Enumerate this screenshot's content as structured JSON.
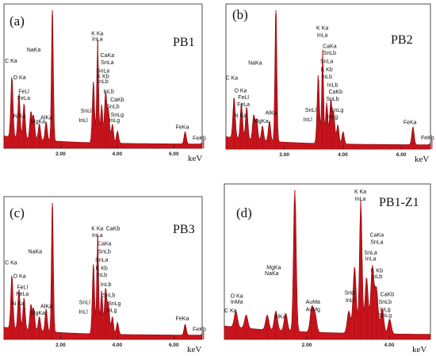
{
  "chart_data": [
    {
      "type": "area",
      "label": "(a)",
      "title": "PB1",
      "xunit": "keV",
      "xlim": [
        0,
        7.0
      ],
      "ylim": [
        0,
        100
      ],
      "xticks": [
        "2.00",
        "4.00",
        "6.00"
      ],
      "peaks": [
        {
          "x": 0.28,
          "h": 45
        },
        {
          "x": 0.53,
          "h": 33
        },
        {
          "x": 0.71,
          "h": 26
        },
        {
          "x": 0.95,
          "h": 20
        },
        {
          "x": 1.05,
          "h": 17
        },
        {
          "x": 1.25,
          "h": 12
        },
        {
          "x": 1.49,
          "h": 14
        },
        {
          "x": 1.71,
          "h": 100
        },
        {
          "x": 3.16,
          "h": 45
        },
        {
          "x": 3.31,
          "h": 75
        },
        {
          "x": 3.45,
          "h": 28
        },
        {
          "x": 3.59,
          "h": 38
        },
        {
          "x": 3.69,
          "h": 24
        },
        {
          "x": 3.83,
          "h": 14
        },
        {
          "x": 4.01,
          "h": 9
        },
        {
          "x": 6.4,
          "h": 9
        },
        {
          "x": 7.05,
          "h": 3
        }
      ],
      "labels": [
        {
          "text": "C Ka",
          "x": 0.25,
          "y": 62
        },
        {
          "text": "O Ka",
          "x": 0.55,
          "y": 50
        },
        {
          "text": "FeLl",
          "x": 0.7,
          "y": 40
        },
        {
          "text": "FeLa",
          "x": 0.7,
          "y": 35
        },
        {
          "text": "NaKa",
          "x": 1.05,
          "y": 70
        },
        {
          "text": "MgKa",
          "x": 1.2,
          "y": 18
        },
        {
          "text": "AlKa",
          "x": 1.5,
          "y": 21
        },
        {
          "text": "N Ka",
          "x": 0.55,
          "y": 22
        },
        {
          "text": "K Ka",
          "x": 3.3,
          "y": 82
        },
        {
          "text": "InLa",
          "x": 3.3,
          "y": 78
        },
        {
          "text": "CaKa",
          "x": 3.65,
          "y": 66
        },
        {
          "text": "SnLa",
          "x": 3.65,
          "y": 61
        },
        {
          "text": "SnLa",
          "x": 3.5,
          "y": 55
        },
        {
          "text": "K Kb",
          "x": 3.5,
          "y": 51
        },
        {
          "text": "InLb",
          "x": 3.5,
          "y": 47
        },
        {
          "text": "InLb",
          "x": 3.7,
          "y": 40
        },
        {
          "text": "CaKb",
          "x": 4.0,
          "y": 34
        },
        {
          "text": "SnLb",
          "x": 3.85,
          "y": 29
        },
        {
          "text": "SnLg",
          "x": 4.0,
          "y": 23
        },
        {
          "text": "InLg",
          "x": 3.9,
          "y": 19
        },
        {
          "text": "SnLl",
          "x": 2.9,
          "y": 26
        },
        {
          "text": "InLl",
          "x": 2.8,
          "y": 19
        },
        {
          "text": "FeKa",
          "x": 6.3,
          "y": 14
        },
        {
          "text": "FeKb",
          "x": 6.9,
          "y": 6
        }
      ]
    },
    {
      "type": "area",
      "label": "(b)",
      "title": "PB2",
      "xunit": "keV",
      "xlim": [
        0,
        7.0
      ],
      "ylim": [
        0,
        100
      ],
      "xticks": [
        "2.00",
        "4.00",
        "6.00"
      ],
      "peaks": [
        {
          "x": 0.28,
          "h": 30
        },
        {
          "x": 0.53,
          "h": 26
        },
        {
          "x": 0.71,
          "h": 24
        },
        {
          "x": 0.95,
          "h": 18
        },
        {
          "x": 1.05,
          "h": 15
        },
        {
          "x": 1.25,
          "h": 11
        },
        {
          "x": 1.49,
          "h": 15
        },
        {
          "x": 1.71,
          "h": 100
        },
        {
          "x": 3.16,
          "h": 50
        },
        {
          "x": 3.31,
          "h": 68
        },
        {
          "x": 3.45,
          "h": 30
        },
        {
          "x": 3.59,
          "h": 32
        },
        {
          "x": 3.69,
          "h": 22
        },
        {
          "x": 3.83,
          "h": 14
        },
        {
          "x": 4.01,
          "h": 9
        },
        {
          "x": 6.4,
          "h": 13
        },
        {
          "x": 7.05,
          "h": 4
        }
      ],
      "labels": [
        {
          "text": "C Ka",
          "x": 0.2,
          "y": 50
        },
        {
          "text": "O Ka",
          "x": 0.5,
          "y": 41
        },
        {
          "text": "FeLl",
          "x": 0.6,
          "y": 36
        },
        {
          "text": "FeLa",
          "x": 0.6,
          "y": 31
        },
        {
          "text": "NaKa",
          "x": 1.0,
          "y": 61
        },
        {
          "text": "MgKa",
          "x": 1.2,
          "y": 19
        },
        {
          "text": "AlKa",
          "x": 1.55,
          "y": 25
        },
        {
          "text": "N Ka",
          "x": 0.5,
          "y": 23
        },
        {
          "text": "K Ka",
          "x": 3.3,
          "y": 86
        },
        {
          "text": "InLa",
          "x": 3.3,
          "y": 81
        },
        {
          "text": "CaKa",
          "x": 3.55,
          "y": 73
        },
        {
          "text": "SnLb",
          "x": 3.55,
          "y": 68
        },
        {
          "text": "SnLa",
          "x": 3.45,
          "y": 62
        },
        {
          "text": "K Kb",
          "x": 3.45,
          "y": 56
        },
        {
          "text": "InLb",
          "x": 3.45,
          "y": 51
        },
        {
          "text": "InLb",
          "x": 3.65,
          "y": 45
        },
        {
          "text": "CaKb",
          "x": 3.75,
          "y": 40
        },
        {
          "text": "SnLb",
          "x": 3.65,
          "y": 35
        },
        {
          "text": "SnLg",
          "x": 3.8,
          "y": 27
        },
        {
          "text": "InLg",
          "x": 3.65,
          "y": 22
        },
        {
          "text": "SnLl",
          "x": 2.9,
          "y": 27
        },
        {
          "text": "InLl",
          "x": 2.8,
          "y": 20
        },
        {
          "text": "FeKa",
          "x": 6.3,
          "y": 18
        },
        {
          "text": "FeKb",
          "x": 6.9,
          "y": 7
        }
      ]
    },
    {
      "type": "area",
      "label": "(c)",
      "title": "PB3",
      "xunit": "keV",
      "xlim": [
        0,
        7.0
      ],
      "ylim": [
        0,
        100
      ],
      "xticks": [
        "2.00",
        "4.00",
        "6.00"
      ],
      "peaks": [
        {
          "x": 0.28,
          "h": 40
        },
        {
          "x": 0.53,
          "h": 30
        },
        {
          "x": 0.71,
          "h": 24
        },
        {
          "x": 0.95,
          "h": 19
        },
        {
          "x": 1.05,
          "h": 16
        },
        {
          "x": 1.25,
          "h": 11
        },
        {
          "x": 1.49,
          "h": 17
        },
        {
          "x": 1.71,
          "h": 100
        },
        {
          "x": 3.16,
          "h": 52
        },
        {
          "x": 3.31,
          "h": 73
        },
        {
          "x": 3.45,
          "h": 32
        },
        {
          "x": 3.59,
          "h": 34
        },
        {
          "x": 3.69,
          "h": 22
        },
        {
          "x": 3.83,
          "h": 13
        },
        {
          "x": 4.01,
          "h": 9
        },
        {
          "x": 6.4,
          "h": 8
        },
        {
          "x": 7.05,
          "h": 3
        }
      ],
      "labels": [
        {
          "text": "C Ka",
          "x": 0.25,
          "y": 55
        },
        {
          "text": "O Ka",
          "x": 0.55,
          "y": 45
        },
        {
          "text": "FeLl",
          "x": 0.65,
          "y": 37
        },
        {
          "text": "FeLa",
          "x": 0.65,
          "y": 32
        },
        {
          "text": "NaKa",
          "x": 1.1,
          "y": 63
        },
        {
          "text": "MgKa",
          "x": 1.2,
          "y": 18
        },
        {
          "text": "AlKa",
          "x": 1.5,
          "y": 23
        },
        {
          "text": "N Ka",
          "x": 0.5,
          "y": 25
        },
        {
          "text": "K Ka",
          "x": 3.3,
          "y": 80
        },
        {
          "text": "InLa",
          "x": 3.3,
          "y": 75
        },
        {
          "text": "CaKb",
          "x": 3.85,
          "y": 80
        },
        {
          "text": "CaKa",
          "x": 3.55,
          "y": 69
        },
        {
          "text": "SnLb",
          "x": 3.55,
          "y": 63
        },
        {
          "text": "SnLa",
          "x": 3.45,
          "y": 57
        },
        {
          "text": "K Kb",
          "x": 3.45,
          "y": 51
        },
        {
          "text": "InLb",
          "x": 3.45,
          "y": 46
        },
        {
          "text": "InLb",
          "x": 3.6,
          "y": 39
        },
        {
          "text": "SnLb",
          "x": 3.7,
          "y": 31
        },
        {
          "text": "SnLg",
          "x": 3.9,
          "y": 25
        },
        {
          "text": "InLg",
          "x": 3.8,
          "y": 20
        },
        {
          "text": "SnLl",
          "x": 2.85,
          "y": 26
        },
        {
          "text": "InLl",
          "x": 2.8,
          "y": 19
        },
        {
          "text": "FeKa",
          "x": 6.3,
          "y": 14
        },
        {
          "text": "FeKb",
          "x": 6.9,
          "y": 6
        }
      ]
    },
    {
      "type": "area",
      "label": "(d)",
      "title": "PB1-Z1",
      "xunit": "keV",
      "xlim": [
        0,
        5.0
      ],
      "ylim": [
        0,
        100
      ],
      "xticks": [
        "2.00",
        "4.00"
      ],
      "peaks": [
        {
          "x": 0.28,
          "h": 11
        },
        {
          "x": 0.53,
          "h": 9
        },
        {
          "x": 1.04,
          "h": 10
        },
        {
          "x": 1.25,
          "h": 13
        },
        {
          "x": 1.49,
          "h": 12
        },
        {
          "x": 1.71,
          "h": 100
        },
        {
          "x": 2.12,
          "h": 16
        },
        {
          "x": 2.2,
          "h": 12
        },
        {
          "x": 3.02,
          "h": 15
        },
        {
          "x": 3.16,
          "h": 45
        },
        {
          "x": 3.31,
          "h": 90
        },
        {
          "x": 3.45,
          "h": 38
        },
        {
          "x": 3.59,
          "h": 45
        },
        {
          "x": 3.69,
          "h": 30
        },
        {
          "x": 3.83,
          "h": 17
        },
        {
          "x": 4.01,
          "h": 10
        }
      ],
      "labels": [
        {
          "text": "O Ka",
          "x": 0.3,
          "y": 28
        },
        {
          "text": "InMa",
          "x": 0.3,
          "y": 24
        },
        {
          "text": "C Ka",
          "x": 0.15,
          "y": 18
        },
        {
          "text": "MgKa",
          "x": 1.2,
          "y": 47
        },
        {
          "text": "NaKa",
          "x": 1.15,
          "y": 43
        },
        {
          "text": "AlKa",
          "x": 1.35,
          "y": 14
        },
        {
          "text": "AuMa",
          "x": 2.15,
          "y": 24
        },
        {
          "text": "AuMg",
          "x": 2.15,
          "y": 19
        },
        {
          "text": "K Ka",
          "x": 3.3,
          "y": 98
        },
        {
          "text": "InLa",
          "x": 3.3,
          "y": 93
        },
        {
          "text": "CaKa",
          "x": 3.7,
          "y": 69
        },
        {
          "text": "SnLa",
          "x": 3.7,
          "y": 64
        },
        {
          "text": "SnLa",
          "x": 3.55,
          "y": 57
        },
        {
          "text": "InLa",
          "x": 3.55,
          "y": 53
        },
        {
          "text": "K Kb",
          "x": 3.7,
          "y": 45
        },
        {
          "text": "InLb",
          "x": 3.7,
          "y": 41
        },
        {
          "text": "CaKb",
          "x": 3.95,
          "y": 29
        },
        {
          "text": "SnLb",
          "x": 3.9,
          "y": 24
        },
        {
          "text": "InLg",
          "x": 3.9,
          "y": 19
        },
        {
          "text": "SnLg",
          "x": 3.9,
          "y": 15
        },
        {
          "text": "SnLl",
          "x": 3.05,
          "y": 30
        },
        {
          "text": "InLl",
          "x": 3.05,
          "y": 25
        }
      ]
    }
  ]
}
